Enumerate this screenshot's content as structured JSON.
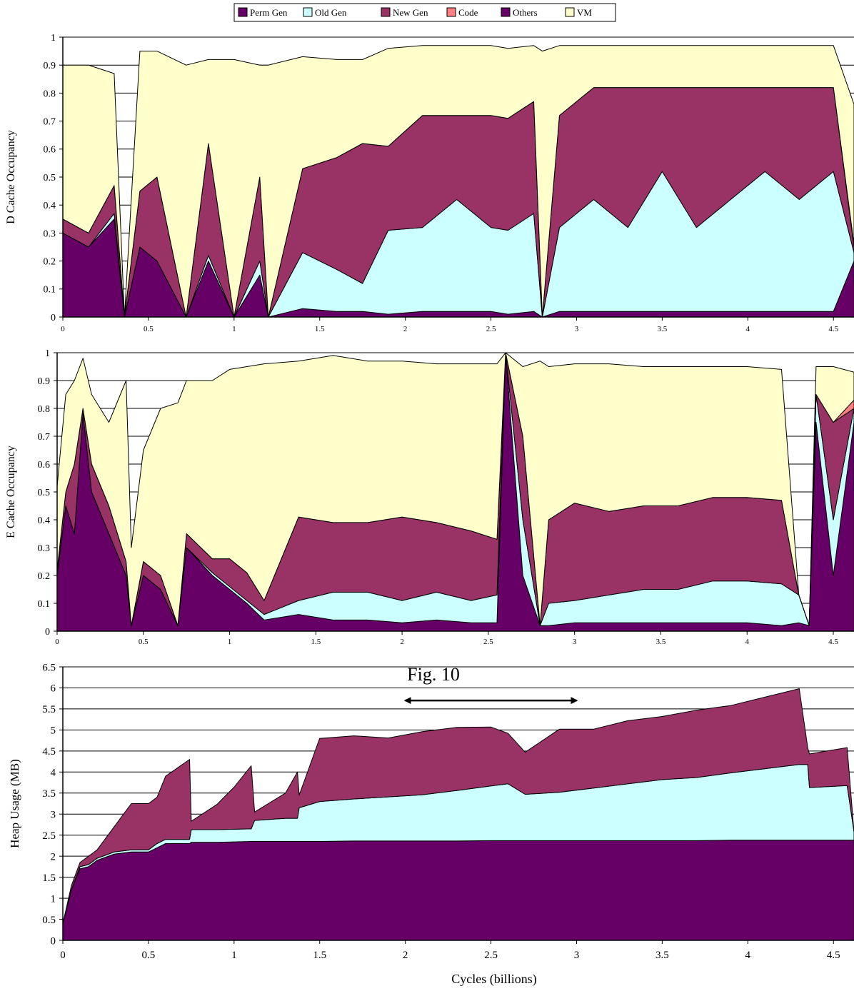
{
  "legend": {
    "entries": [
      {
        "label": "Perm Gen",
        "color": "#660066"
      },
      {
        "label": "Old Gen",
        "color": "#ccffff"
      },
      {
        "label": "New Gen",
        "color": "#993366"
      },
      {
        "label": "Code",
        "color": "#ff8080"
      },
      {
        "label": "Others",
        "color": "#660066"
      },
      {
        "label": "VM",
        "color": "#ffffcc"
      }
    ]
  },
  "annotation": {
    "text": "Fig. 10",
    "arrow_from_x": 2.0,
    "arrow_to_x": 3.0,
    "arrow_y": 5.7
  },
  "chart_data": [
    {
      "type": "area",
      "stacked": true,
      "ylabel": "D  Cache Occupancy",
      "xlabel": "",
      "xlim": [
        0,
        4.62
      ],
      "ylim": [
        0,
        1
      ],
      "xticks": [
        "0",
        "0.5",
        "1",
        "1.5",
        "2",
        "2.5",
        "3",
        "3.5",
        "4",
        "4.5"
      ],
      "yticks": [
        "0",
        "0.1",
        "0.2",
        "0.3",
        "0.4",
        "0.5",
        "0.6",
        "0.7",
        "0.8",
        "0.9",
        "1"
      ],
      "grid": true,
      "x": [
        0,
        0.15,
        0.3,
        0.36,
        0.45,
        0.55,
        0.72,
        0.85,
        1.0,
        1.15,
        1.2,
        1.4,
        1.6,
        1.75,
        1.9,
        2.1,
        2.3,
        2.5,
        2.6,
        2.75,
        2.8,
        2.9,
        3.1,
        3.3,
        3.5,
        3.7,
        3.9,
        4.1,
        4.3,
        4.5,
        4.62
      ],
      "series": [
        {
          "name": "Perm Gen",
          "values": [
            0.3,
            0.25,
            0.35,
            0.0,
            0.25,
            0.2,
            0.0,
            0.2,
            0.0,
            0.15,
            0.0,
            0.03,
            0.02,
            0.02,
            0.01,
            0.02,
            0.02,
            0.02,
            0.01,
            0.02,
            0.0,
            0.02,
            0.02,
            0.02,
            0.02,
            0.02,
            0.02,
            0.02,
            0.02,
            0.02,
            0.2
          ]
        },
        {
          "name": "Old Gen",
          "values": [
            0.0,
            0.0,
            0.02,
            0.0,
            0.0,
            0.0,
            0.0,
            0.02,
            0.0,
            0.05,
            0.0,
            0.2,
            0.15,
            0.1,
            0.3,
            0.3,
            0.4,
            0.3,
            0.3,
            0.35,
            0.0,
            0.3,
            0.4,
            0.3,
            0.5,
            0.3,
            0.4,
            0.5,
            0.4,
            0.5,
            0.03
          ]
        },
        {
          "name": "New Gen",
          "values": [
            0.05,
            0.05,
            0.1,
            0.0,
            0.2,
            0.3,
            0.0,
            0.4,
            0.0,
            0.3,
            0.0,
            0.3,
            0.4,
            0.5,
            0.3,
            0.4,
            0.3,
            0.4,
            0.4,
            0.4,
            0.0,
            0.4,
            0.4,
            0.5,
            0.3,
            0.5,
            0.4,
            0.3,
            0.4,
            0.3,
            0.02
          ]
        },
        {
          "name": "Code",
          "values": [
            0.0,
            0.0,
            0.0,
            0.0,
            0.0,
            0.0,
            0.0,
            0.0,
            0.0,
            0.0,
            0.0,
            0.0,
            0.0,
            0.0,
            0.0,
            0.0,
            0.0,
            0.0,
            0.0,
            0.0,
            0.0,
            0.0,
            0.0,
            0.0,
            0.0,
            0.0,
            0.0,
            0.0,
            0.0,
            0.0,
            0.01
          ]
        },
        {
          "name": "Others",
          "values": [
            0.0,
            0.0,
            0.0,
            0.0,
            0.0,
            0.0,
            0.0,
            0.0,
            0.0,
            0.0,
            0.0,
            0.0,
            0.0,
            0.0,
            0.0,
            0.0,
            0.0,
            0.0,
            0.0,
            0.0,
            0.0,
            0.0,
            0.0,
            0.0,
            0.0,
            0.0,
            0.0,
            0.0,
            0.0,
            0.0,
            0.0
          ]
        },
        {
          "name": "VM",
          "values": [
            0.55,
            0.6,
            0.4,
            0.0,
            0.5,
            0.45,
            0.9,
            0.3,
            0.92,
            0.4,
            0.9,
            0.4,
            0.35,
            0.3,
            0.35,
            0.25,
            0.25,
            0.25,
            0.25,
            0.2,
            0.95,
            0.25,
            0.15,
            0.15,
            0.15,
            0.15,
            0.15,
            0.15,
            0.15,
            0.15,
            0.5
          ]
        }
      ]
    },
    {
      "type": "area",
      "stacked": true,
      "ylabel": "E  Cache Occupancy",
      "xlabel": "",
      "xlim": [
        0,
        4.62
      ],
      "ylim": [
        0,
        1
      ],
      "xticks": [
        "0",
        "0.5",
        "1",
        "1.5",
        "2",
        "2.5",
        "3",
        "3.5",
        "4",
        "4.5"
      ],
      "yticks": [
        "0",
        "0.1",
        "0.2",
        "0.3",
        "0.4",
        "0.5",
        "0.6",
        "0.7",
        "0.8",
        "0.9",
        "1"
      ],
      "grid": true,
      "x": [
        0,
        0.05,
        0.1,
        0.15,
        0.2,
        0.3,
        0.4,
        0.43,
        0.5,
        0.6,
        0.7,
        0.75,
        0.9,
        1.0,
        1.1,
        1.2,
        1.4,
        1.6,
        1.8,
        2.0,
        2.2,
        2.4,
        2.55,
        2.6,
        2.7,
        2.8,
        2.85,
        3.0,
        3.2,
        3.4,
        3.6,
        3.8,
        4.0,
        4.2,
        4.3,
        4.36,
        4.4,
        4.5,
        4.62
      ],
      "series": [
        {
          "name": "Perm Gen",
          "values": [
            0.2,
            0.45,
            0.35,
            0.78,
            0.5,
            0.35,
            0.2,
            0.02,
            0.2,
            0.15,
            0.02,
            0.3,
            0.2,
            0.15,
            0.1,
            0.04,
            0.06,
            0.04,
            0.04,
            0.03,
            0.04,
            0.03,
            0.03,
            1.0,
            0.2,
            0.02,
            0.02,
            0.03,
            0.03,
            0.03,
            0.03,
            0.03,
            0.03,
            0.02,
            0.03,
            0.02,
            0.75,
            0.2,
            0.75
          ]
        },
        {
          "name": "Old Gen",
          "values": [
            0.0,
            0.0,
            0.0,
            0.0,
            0.0,
            0.0,
            0.0,
            0.0,
            0.0,
            0.0,
            0.0,
            0.0,
            0.01,
            0.01,
            0.01,
            0.02,
            0.05,
            0.1,
            0.1,
            0.08,
            0.1,
            0.08,
            0.1,
            0.0,
            0.2,
            0.0,
            0.08,
            0.08,
            0.1,
            0.12,
            0.12,
            0.15,
            0.15,
            0.15,
            0.1,
            0.0,
            0.1,
            0.2,
            0.05
          ]
        },
        {
          "name": "New Gen",
          "values": [
            0.02,
            0.05,
            0.25,
            0.02,
            0.1,
            0.1,
            0.05,
            0.0,
            0.05,
            0.05,
            0.0,
            0.05,
            0.05,
            0.1,
            0.1,
            0.05,
            0.3,
            0.25,
            0.25,
            0.3,
            0.25,
            0.25,
            0.2,
            0.0,
            0.3,
            0.0,
            0.3,
            0.35,
            0.3,
            0.3,
            0.3,
            0.3,
            0.3,
            0.3,
            0.0,
            0.0,
            0.0,
            0.35,
            0.0
          ]
        },
        {
          "name": "Code",
          "values": [
            0.0,
            0.0,
            0.0,
            0.0,
            0.0,
            0.0,
            0.0,
            0.0,
            0.0,
            0.0,
            0.0,
            0.0,
            0.0,
            0.0,
            0.0,
            0.0,
            0.0,
            0.0,
            0.0,
            0.0,
            0.0,
            0.0,
            0.0,
            0.0,
            0.0,
            0.0,
            0.0,
            0.0,
            0.0,
            0.0,
            0.0,
            0.0,
            0.0,
            0.0,
            0.0,
            0.0,
            0.0,
            0.0,
            0.03
          ]
        },
        {
          "name": "Others",
          "values": [
            0.0,
            0.0,
            0.0,
            0.0,
            0.0,
            0.0,
            0.0,
            0.0,
            0.0,
            0.0,
            0.0,
            0.0,
            0.0,
            0.0,
            0.0,
            0.0,
            0.0,
            0.0,
            0.0,
            0.0,
            0.0,
            0.0,
            0.0,
            0.0,
            0.0,
            0.0,
            0.0,
            0.0,
            0.0,
            0.0,
            0.0,
            0.0,
            0.0,
            0.0,
            0.0,
            0.0,
            0.0,
            0.0,
            0.0
          ]
        },
        {
          "name": "VM",
          "values": [
            0.3,
            0.35,
            0.3,
            0.18,
            0.25,
            0.3,
            0.65,
            0.28,
            0.4,
            0.6,
            0.8,
            0.55,
            0.64,
            0.68,
            0.74,
            0.85,
            0.56,
            0.6,
            0.58,
            0.56,
            0.57,
            0.6,
            0.63,
            0.0,
            0.25,
            0.95,
            0.55,
            0.5,
            0.53,
            0.5,
            0.5,
            0.47,
            0.47,
            0.47,
            0.0,
            0.0,
            0.1,
            0.2,
            0.1
          ]
        }
      ]
    },
    {
      "type": "area",
      "stacked": true,
      "ylabel": "Heap Usage (MB)",
      "xlabel": "Cycles (billions)",
      "xlim": [
        0,
        4.62
      ],
      "ylim": [
        0,
        6.5
      ],
      "xticks": [
        "0",
        "0.5",
        "1",
        "1.5",
        "2",
        "2.5",
        "3",
        "3.5",
        "4",
        "4.5"
      ],
      "yticks": [
        "0",
        "0.5",
        "1",
        "1.5",
        "2",
        "2.5",
        "3",
        "3.5",
        "4",
        "4.5",
        "5",
        "5.5",
        "6",
        "6.5"
      ],
      "grid": true,
      "x": [
        0,
        0.05,
        0.1,
        0.15,
        0.2,
        0.3,
        0.4,
        0.5,
        0.55,
        0.6,
        0.74,
        0.75,
        0.9,
        1.0,
        1.1,
        1.12,
        1.3,
        1.37,
        1.38,
        1.5,
        1.7,
        1.9,
        2.1,
        2.3,
        2.5,
        2.6,
        2.7,
        2.9,
        3.1,
        3.3,
        3.5,
        3.7,
        3.9,
        4.1,
        4.3,
        4.35,
        4.36,
        4.58,
        4.62
      ],
      "series": [
        {
          "name": "Perm Gen",
          "values": [
            0.4,
            1.2,
            1.7,
            1.75,
            1.9,
            2.05,
            2.1,
            2.1,
            2.2,
            2.3,
            2.3,
            2.33,
            2.33,
            2.34,
            2.35,
            2.35,
            2.35,
            2.35,
            2.35,
            2.35,
            2.36,
            2.36,
            2.36,
            2.36,
            2.37,
            2.37,
            2.37,
            2.37,
            2.37,
            2.37,
            2.37,
            2.37,
            2.38,
            2.38,
            2.38,
            2.38,
            2.38,
            2.38,
            2.38
          ]
        },
        {
          "name": "Old Gen",
          "values": [
            0.0,
            0.0,
            0.05,
            0.05,
            0.05,
            0.05,
            0.05,
            0.05,
            0.1,
            0.1,
            0.1,
            0.3,
            0.3,
            0.3,
            0.3,
            0.5,
            0.55,
            0.55,
            0.8,
            0.95,
            1.0,
            1.05,
            1.1,
            1.2,
            1.3,
            1.35,
            1.1,
            1.15,
            1.25,
            1.35,
            1.45,
            1.5,
            1.6,
            1.7,
            1.8,
            1.8,
            1.25,
            1.3,
            0.2
          ]
        },
        {
          "name": "New Gen",
          "values": [
            0.0,
            0.1,
            0.1,
            0.2,
            0.2,
            0.6,
            1.1,
            1.1,
            1.1,
            1.5,
            1.9,
            0.2,
            0.6,
            1.0,
            1.5,
            0.2,
            0.6,
            1.1,
            0.3,
            1.5,
            1.5,
            1.4,
            1.5,
            1.5,
            1.4,
            1.2,
            1.0,
            1.5,
            1.4,
            1.5,
            1.5,
            1.6,
            1.6,
            1.7,
            1.8,
            0.4,
            0.8,
            0.9,
            0.0
          ]
        },
        {
          "name": "Code",
          "values": [
            0.0,
            0.0,
            0.0,
            0.0,
            0.0,
            0.0,
            0.0,
            0.0,
            0.0,
            0.0,
            0.0,
            0.0,
            0.0,
            0.0,
            0.0,
            0.0,
            0.0,
            0.0,
            0.0,
            0.0,
            0.0,
            0.0,
            0.0,
            0.0,
            0.0,
            0.0,
            0.0,
            0.0,
            0.0,
            0.0,
            0.0,
            0.0,
            0.0,
            0.0,
            0.0,
            0.0,
            0.0,
            0.0,
            0.0
          ]
        },
        {
          "name": "Others",
          "values": [
            0.0,
            0.0,
            0.0,
            0.0,
            0.0,
            0.0,
            0.0,
            0.0,
            0.0,
            0.0,
            0.0,
            0.0,
            0.0,
            0.0,
            0.0,
            0.0,
            0.0,
            0.0,
            0.0,
            0.0,
            0.0,
            0.0,
            0.0,
            0.0,
            0.0,
            0.0,
            0.0,
            0.0,
            0.0,
            0.0,
            0.0,
            0.0,
            0.0,
            0.0,
            0.0,
            0.0,
            0.0,
            0.0,
            0.0
          ]
        },
        {
          "name": "VM",
          "values": [
            0.0,
            0.0,
            0.0,
            0.0,
            0.0,
            0.0,
            0.0,
            0.0,
            0.0,
            0.0,
            0.0,
            0.0,
            0.0,
            0.0,
            0.0,
            0.0,
            0.0,
            0.0,
            0.0,
            0.0,
            0.0,
            0.0,
            0.0,
            0.0,
            0.0,
            0.0,
            0.0,
            0.0,
            0.0,
            0.0,
            0.0,
            0.0,
            0.0,
            0.0,
            0.0,
            0.0,
            0.0,
            0.0,
            0.0
          ]
        }
      ]
    }
  ]
}
